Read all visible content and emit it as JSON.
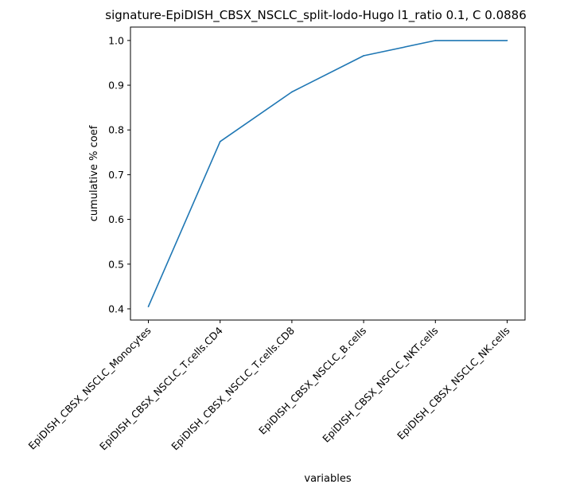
{
  "chart_data": {
    "type": "line",
    "title": "signature-EpiDISH_CBSX_NSCLC_split-lodo-Hugo l1_ratio 0.1, C 0.0886",
    "xlabel": "variables",
    "ylabel": "cumulative % coef",
    "categories": [
      "EpiDISH_CBSX_NSCLC_Monocytes",
      "EpiDISH_CBSX_NSCLC_T.cells.CD4",
      "EpiDISH_CBSX_NSCLC_T.cells.CD8",
      "EpiDISH_CBSX_NSCLC_B.cells",
      "EpiDISH_CBSX_NSCLC_NKT.cells",
      "EpiDISH_CBSX_NSCLC_NK.cells"
    ],
    "values": [
      0.405,
      0.774,
      0.885,
      0.966,
      1.0,
      1.0
    ],
    "yticks": [
      "0.4",
      "0.5",
      "0.6",
      "0.7",
      "0.8",
      "0.9",
      "1.0"
    ],
    "ylim": [
      0.375,
      1.03
    ],
    "grid": false,
    "line_color": "#1f77b4"
  }
}
